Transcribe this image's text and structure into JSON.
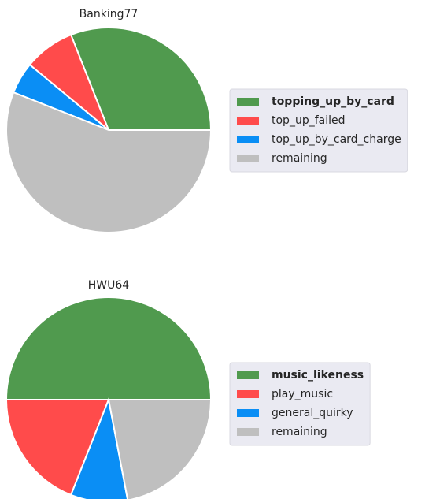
{
  "chart_data": [
    {
      "type": "pie",
      "title": "Banking77",
      "categories": [
        "topping_up_by_card",
        "top_up_failed",
        "top_up_by_card_charge",
        "remaining"
      ],
      "values": [
        31,
        8,
        5,
        56
      ],
      "colors": [
        "#509a4e",
        "#ff4b4b",
        "#0a8ef5",
        "#bfbfbf"
      ]
    },
    {
      "type": "pie",
      "title": "HWU64",
      "categories": [
        "music_likeness",
        "play_music",
        "general_quirky",
        "remaining"
      ],
      "values": [
        50,
        19,
        9,
        22
      ],
      "colors": [
        "#509a4e",
        "#ff4b4b",
        "#0a8ef5",
        "#bfbfbf"
      ]
    }
  ]
}
